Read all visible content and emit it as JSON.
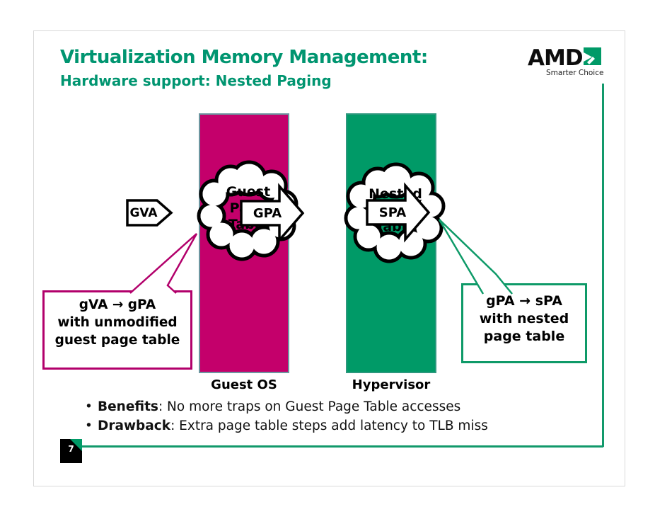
{
  "slide": {
    "title": "Virtualization Memory Management:",
    "subtitle": "Hardware support: Nested Paging",
    "page_number": "7"
  },
  "logo": {
    "brand": "AMD",
    "tagline": "Smarter Choice"
  },
  "diagram": {
    "gva_label": "GVA",
    "gpa_label": "GPA",
    "spa_label": "SPA",
    "guest_cloud": {
      "line1": "Guest",
      "line2": "Page",
      "line3": "Table"
    },
    "nested_cloud": {
      "line1": "Nested",
      "line2": "Page",
      "line3": "Table"
    },
    "guest_bar_label": "Guest OS",
    "hypervisor_bar_label": "Hypervisor",
    "left_callout": {
      "line1": "gVA → gPA",
      "line2": "with unmodified",
      "line3": "guest page table"
    },
    "right_callout": {
      "line1": "gPA → sPA",
      "line2": "with nested",
      "line3": "page table"
    }
  },
  "bullets": [
    {
      "lead": "Benefits",
      "rest": ": No more traps on Guest Page Table accesses"
    },
    {
      "lead": "Drawback",
      "rest": ": Extra page table steps add latency to TLB miss"
    }
  ],
  "colors": {
    "magenta_bar": "#C4006B",
    "green_bar": "#009A67",
    "heading_green": "#009570",
    "callout_magenta_border": "#B2006B",
    "callout_green_border": "#0E9A68",
    "connector_green_line": "#12996B",
    "bar_outline_teal": "#6D96A0"
  }
}
